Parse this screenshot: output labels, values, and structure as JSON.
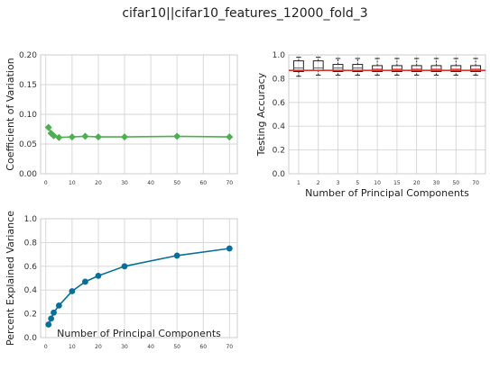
{
  "figure_title": "cifar10||cifar10_features_12000_fold_3",
  "colors": {
    "cv": "#4caf50",
    "variance": "#0a6e9a",
    "median": "#d9342b",
    "box": "#222222"
  },
  "chart_data": [
    {
      "type": "line",
      "marker": "diamond",
      "x": [
        1,
        2,
        3,
        5,
        10,
        15,
        20,
        30,
        50,
        70
      ],
      "y": [
        0.078,
        0.068,
        0.064,
        0.061,
        0.062,
        0.063,
        0.062,
        0.062,
        0.063,
        0.062
      ],
      "ylabel": "Coefficient of Variation",
      "xlabel": "",
      "xticks": [
        0,
        10,
        20,
        30,
        40,
        50,
        60,
        70
      ],
      "yticks": [
        "0.00",
        "0.05",
        "0.10",
        "0.15",
        "0.20"
      ],
      "xlim": [
        -2,
        73
      ],
      "ylim": [
        0,
        0.2
      ],
      "grid": true
    },
    {
      "type": "box",
      "categories": [
        "1",
        "2",
        "3",
        "5",
        "10",
        "15",
        "20",
        "30",
        "50",
        "70"
      ],
      "boxes": [
        {
          "whislo": 0.82,
          "q1": 0.86,
          "med": 0.89,
          "q3": 0.95,
          "whishi": 0.98
        },
        {
          "whislo": 0.83,
          "q1": 0.87,
          "med": 0.89,
          "q3": 0.95,
          "whishi": 0.98
        },
        {
          "whislo": 0.83,
          "q1": 0.86,
          "med": 0.89,
          "q3": 0.92,
          "whishi": 0.97
        },
        {
          "whislo": 0.83,
          "q1": 0.86,
          "med": 0.89,
          "q3": 0.92,
          "whishi": 0.97
        },
        {
          "whislo": 0.83,
          "q1": 0.86,
          "med": 0.88,
          "q3": 0.91,
          "whishi": 0.97
        },
        {
          "whislo": 0.83,
          "q1": 0.86,
          "med": 0.88,
          "q3": 0.91,
          "whishi": 0.97
        },
        {
          "whislo": 0.83,
          "q1": 0.86,
          "med": 0.88,
          "q3": 0.91,
          "whishi": 0.97
        },
        {
          "whislo": 0.83,
          "q1": 0.86,
          "med": 0.88,
          "q3": 0.91,
          "whishi": 0.97
        },
        {
          "whislo": 0.83,
          "q1": 0.86,
          "med": 0.88,
          "q3": 0.91,
          "whishi": 0.97
        },
        {
          "whislo": 0.83,
          "q1": 0.86,
          "med": 0.88,
          "q3": 0.91,
          "whishi": 0.97
        }
      ],
      "hline": 0.87,
      "ylabel": "Testing Accuracy",
      "xlabel": "Number of Principal Components",
      "yticks": [
        "0.0",
        "0.2",
        "0.4",
        "0.6",
        "0.8",
        "1.0"
      ],
      "ylim": [
        0,
        1
      ],
      "grid": true
    },
    {
      "type": "line",
      "marker": "circle",
      "x": [
        1,
        2,
        3,
        5,
        10,
        15,
        20,
        30,
        50,
        70
      ],
      "y": [
        0.11,
        0.16,
        0.21,
        0.27,
        0.39,
        0.47,
        0.52,
        0.6,
        0.69,
        0.75
      ],
      "ylabel": "Percent Explained Variance",
      "xlabel": "Number of Principal Components",
      "xticks": [
        0,
        10,
        20,
        30,
        40,
        50,
        60,
        70
      ],
      "yticks": [
        "0.0",
        "0.2",
        "0.4",
        "0.6",
        "0.8",
        "1.0"
      ],
      "xlim": [
        -2,
        73
      ],
      "ylim": [
        0,
        1
      ],
      "grid": true
    }
  ]
}
